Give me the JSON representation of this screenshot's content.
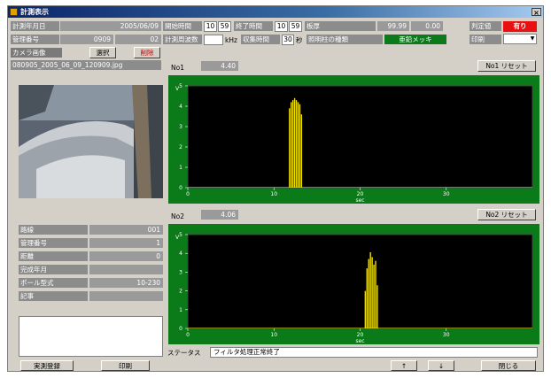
{
  "window": {
    "title": "計測表示",
    "close_glyph": "×"
  },
  "header": {
    "measure_date_label": "計測年月日",
    "measure_date_value": "2005/06/09",
    "mgmt_no_label": "管理番号",
    "mgmt_no_value_a": "0909",
    "mgmt_no_value_b": "02",
    "start_time_label": "開始時間",
    "start_hour": "10",
    "start_min": "59",
    "end_time_label": "終了時間",
    "end_hour": "10",
    "end_min": "59",
    "sampling_label": "計測周波数",
    "sampling_value": "",
    "sampling_unit": "kHz",
    "record_time_label": "収集時間",
    "record_time_value": "30",
    "record_time_unit": "秒",
    "thickness_label": "板厚",
    "thickness_value_a": "99.99",
    "thickness_value_b": "0.00",
    "defect_type_label": "照明柱の種類",
    "defect_type_value": "亜鉛メッキ",
    "judgement_label": "判定値",
    "judgement_value": "有り",
    "judgement_color": "#e81010",
    "print_label": "印刷",
    "print_value": ""
  },
  "camera": {
    "label": "カメラ画像",
    "select_button": "選択",
    "delete_button": "削除",
    "filename": "080905_2005_06_09_120909.jpg"
  },
  "ch1": {
    "label": "No1",
    "value": "4.40",
    "reset_button": "No1 リセット"
  },
  "ch2": {
    "label": "No2",
    "value": "4.06",
    "reset_button": "No2 リセット"
  },
  "left_info": [
    {
      "label": "路線",
      "value": "001"
    },
    {
      "label": "管理番号",
      "value": "1"
    },
    {
      "label": "距離",
      "value": "0"
    },
    {
      "label": "完成年月",
      "value": ""
    },
    {
      "label": "ポール型式",
      "value": "10-230"
    },
    {
      "label": "記事",
      "value": ""
    }
  ],
  "status": {
    "label": "ステータス",
    "message": "フィルタ処理正常終了"
  },
  "footer": {
    "btn_print_record": "実測登録",
    "btn_print": "印刷",
    "btn_prev": "↑",
    "btn_next": "↓",
    "btn_close": "閉じる"
  },
  "chart_data": [
    {
      "type": "line",
      "name_hidden": true,
      "xlabel": "sec",
      "ylabel": "V",
      "xlim": [
        0,
        40
      ],
      "ylim": [
        0,
        5
      ],
      "x_ticks": [
        0,
        10,
        20,
        30
      ],
      "y_ticks": [
        0,
        1,
        2,
        3,
        4,
        5
      ],
      "color": "#f0e000",
      "bursts": [
        {
          "x": 11.8,
          "h": 3.9
        },
        {
          "x": 12.0,
          "h": 4.2
        },
        {
          "x": 12.2,
          "h": 4.3
        },
        {
          "x": 12.4,
          "h": 4.4
        },
        {
          "x": 12.6,
          "h": 4.3
        },
        {
          "x": 12.8,
          "h": 4.2
        },
        {
          "x": 13.0,
          "h": 4.1
        },
        {
          "x": 13.2,
          "h": 3.6
        }
      ]
    },
    {
      "type": "line",
      "xlabel": "sec",
      "ylabel": "V",
      "xlim": [
        0,
        40
      ],
      "ylim": [
        0,
        5
      ],
      "x_ticks": [
        0,
        10,
        20,
        30
      ],
      "y_ticks": [
        0,
        1,
        2,
        3,
        4,
        5
      ],
      "color": "#f0e000",
      "bursts": [
        {
          "x": 20.6,
          "h": 2.0
        },
        {
          "x": 20.8,
          "h": 3.2
        },
        {
          "x": 21.0,
          "h": 3.7
        },
        {
          "x": 21.2,
          "h": 4.06
        },
        {
          "x": 21.4,
          "h": 3.8
        },
        {
          "x": 21.6,
          "h": 3.4
        },
        {
          "x": 21.8,
          "h": 3.6
        },
        {
          "x": 22.0,
          "h": 2.3
        }
      ]
    }
  ]
}
